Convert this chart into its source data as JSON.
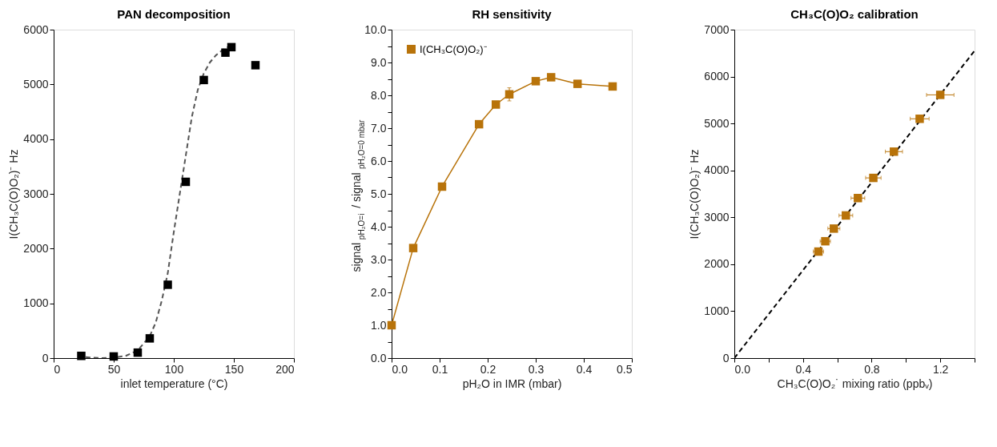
{
  "chart_data": [
    {
      "type": "scatter",
      "title": "PAN decomposition",
      "xlabel": "inlet temperature (°C)",
      "ylabel": "I(CH₃C(O)O₂)⁻ Hz",
      "xlim": [
        0,
        200
      ],
      "xticks": [
        0,
        50,
        100,
        150,
        200
      ],
      "ylim": [
        0,
        6000
      ],
      "yticks": [
        0,
        1000,
        2000,
        3000,
        4000,
        5000,
        6000
      ],
      "grid": false,
      "legend": false,
      "series": [
        {
          "type": "line",
          "color": "#555555",
          "line_style": "dashed",
          "marker": "none",
          "x": [
            20,
            30,
            40,
            50,
            60,
            70,
            80,
            85,
            90,
            95,
            100,
            105,
            110,
            115,
            120,
            125,
            130,
            135,
            140,
            145
          ],
          "values": [
            30,
            10,
            0,
            10,
            40,
            140,
            400,
            650,
            1050,
            1550,
            2300,
            3000,
            3700,
            4400,
            4900,
            5200,
            5400,
            5530,
            5620,
            5680
          ]
        },
        {
          "color": "#000000",
          "marker": "square",
          "x": [
            23,
            50,
            70,
            80,
            95,
            110,
            125,
            143,
            148,
            168
          ],
          "values": [
            40,
            30,
            100,
            360,
            1340,
            3220,
            5080,
            5580,
            5680,
            5350
          ]
        }
      ]
    },
    {
      "type": "line",
      "title": "RH sensitivity",
      "xlabel": "pH₂O in IMR (mbar)",
      "ylabel": "signal$_{pH₂O=i}$ / signal$_{pH₂O=0 mbar}$",
      "xlim": [
        0,
        0.5
      ],
      "xticks": [
        {
          "value": 0,
          "label": "0.0"
        },
        0.1,
        0.2,
        0.3,
        0.4,
        0.5
      ],
      "ylim": [
        0,
        10
      ],
      "yticks": [
        {
          "value": 0,
          "label": "0.0"
        },
        {
          "value": 0.5,
          "label": null
        },
        {
          "value": 1,
          "label": "1.0"
        },
        {
          "value": 1.5,
          "label": null
        },
        {
          "value": 2,
          "label": "2.0"
        },
        {
          "value": 2.5,
          "label": null
        },
        {
          "value": 3,
          "label": "3.0"
        },
        {
          "value": 3.5,
          "label": null
        },
        {
          "value": 4,
          "label": "4.0"
        },
        {
          "value": 4.5,
          "label": null
        },
        {
          "value": 5,
          "label": "5.0"
        },
        {
          "value": 5.5,
          "label": null
        },
        {
          "value": 6,
          "label": "6.0"
        },
        {
          "value": 6.5,
          "label": null
        },
        {
          "value": 7,
          "label": "7.0"
        },
        {
          "value": 7.5,
          "label": null
        },
        {
          "value": 8,
          "label": "8.0"
        },
        {
          "value": 8.5,
          "label": null
        },
        {
          "value": 9,
          "label": "9.0"
        },
        {
          "value": 9.5,
          "label": null
        },
        {
          "value": 10,
          "label": "10.0"
        }
      ],
      "grid": false,
      "legend": "top left",
      "series": [
        {
          "name": "I(CH₃C(O)O₂)⁻",
          "color": "#b8730a",
          "marker": "square",
          "line_style": "solid",
          "x": [
            0,
            0.045,
            0.105,
            0.182,
            0.217,
            0.245,
            0.3,
            0.332,
            0.387,
            0.46
          ],
          "values": [
            1.0,
            3.35,
            5.22,
            7.12,
            7.72,
            8.03,
            8.43,
            8.55,
            8.35,
            8.27
          ],
          "errors": [
            null,
            null,
            null,
            null,
            null,
            0.2,
            null,
            null,
            null,
            null
          ]
        }
      ]
    },
    {
      "type": "scatter",
      "title": "CH₃C(O)O₂ calibration",
      "xlabel": "CH₃C(O)O₂˙ mixing ratio (ppbᵥ)",
      "ylabel": "I(CH₃C(O)O₂)⁻ Hz",
      "xlim": [
        0,
        1.4
      ],
      "xticks": [
        {
          "value": 0,
          "label": "0.0"
        },
        {
          "value": 0.2,
          "label": null
        },
        0.4,
        {
          "value": 0.6,
          "label": null
        },
        0.8,
        {
          "value": 1.0,
          "label": null
        },
        1.2,
        {
          "value": 1.4,
          "label": null
        }
      ],
      "ylim": [
        0,
        7000
      ],
      "yticks": [
        0,
        1000,
        2000,
        3000,
        4000,
        5000,
        6000,
        7000
      ],
      "grid": false,
      "legend": false,
      "series": [
        {
          "type": "line",
          "color": "#000000",
          "line_style": "dashed",
          "marker": "none",
          "x": [
            0,
            1.4
          ],
          "values": [
            0,
            6550
          ]
        },
        {
          "color": "#b8730a",
          "marker": "square",
          "x": [
            0.49,
            0.53,
            0.58,
            0.65,
            0.72,
            0.81,
            0.93,
            1.08,
            1.2
          ],
          "values": [
            2270,
            2490,
            2760,
            3040,
            3410,
            3840,
            4400,
            5100,
            5610
          ],
          "xerrors": [
            0.03,
            0.03,
            0.035,
            0.04,
            0.04,
            0.045,
            0.05,
            0.055,
            0.08
          ]
        }
      ]
    }
  ]
}
